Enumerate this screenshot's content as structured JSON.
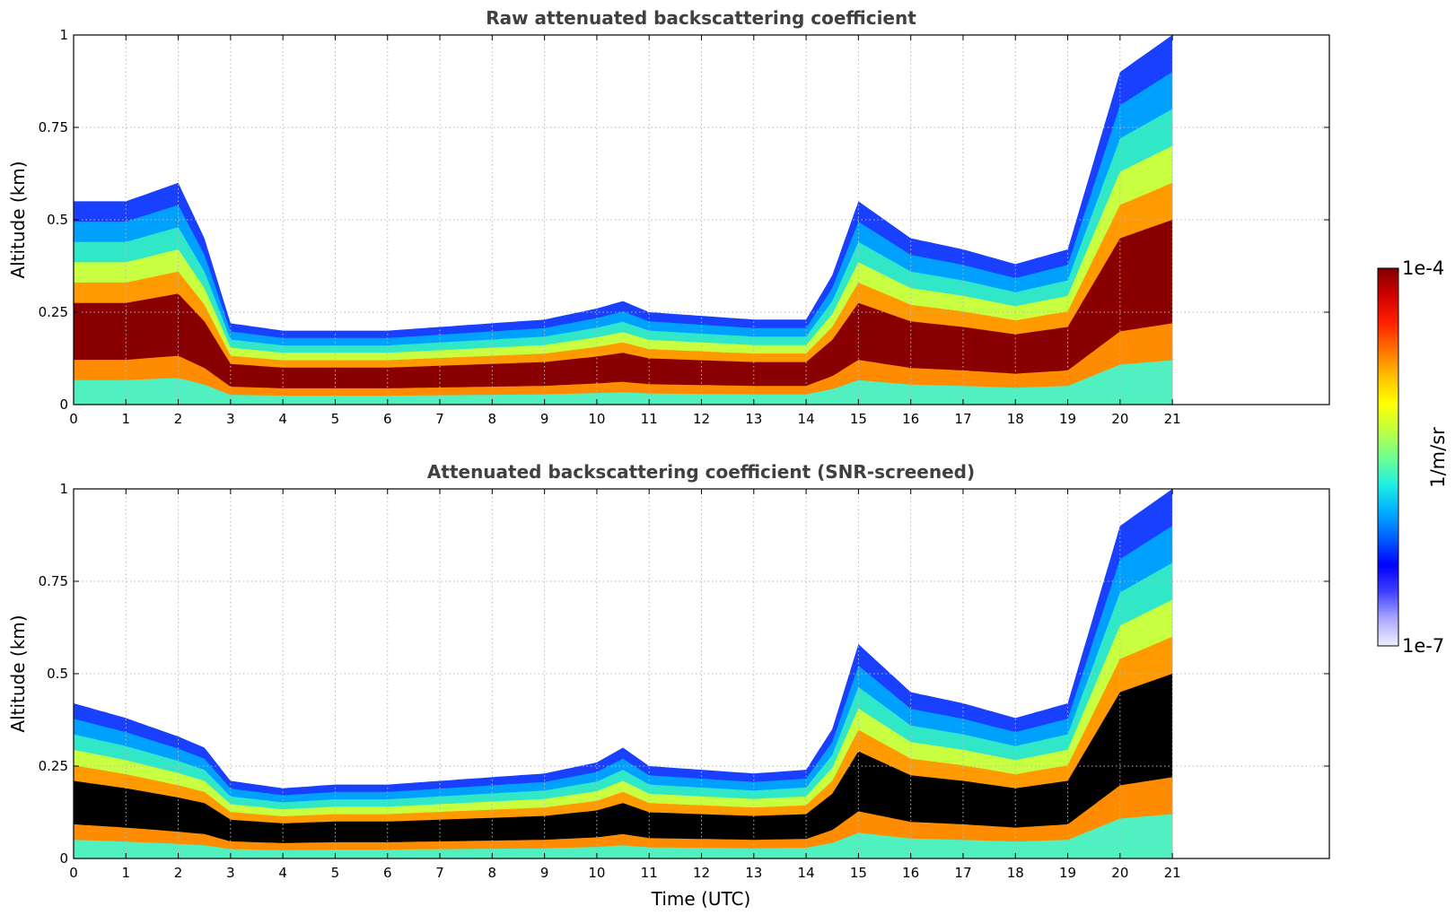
{
  "chart_data": [
    {
      "type": "heatmap",
      "title": "Raw attenuated backscattering coefficient",
      "xlabel": "",
      "ylabel": "Altitude (km)",
      "xlim": [
        0,
        24
      ],
      "ylim": [
        0,
        1
      ],
      "xticks": [
        "0",
        "1",
        "2",
        "3",
        "4",
        "5",
        "6",
        "7",
        "8",
        "9",
        "10",
        "11",
        "12",
        "13",
        "14",
        "15",
        "16",
        "17",
        "18",
        "19",
        "20",
        "21"
      ],
      "yticks": [
        "0",
        "0.25",
        "0.5",
        "0.75",
        "1"
      ],
      "grid": true,
      "data_extent_hours": [
        0,
        21
      ],
      "colormap": "jet (log scale)",
      "aerosol_layer_top_km": {
        "x": [
          0.0,
          1.0,
          2.0,
          2.5,
          3.0,
          4.0,
          5.0,
          6.0,
          7.0,
          8.0,
          9.0,
          10.0,
          10.5,
          11.0,
          12.0,
          13.0,
          14.0,
          14.5,
          15.0,
          16.0,
          17.0,
          18.0,
          19.0,
          20.0,
          21.0
        ],
        "y": [
          0.55,
          0.55,
          0.6,
          0.45,
          0.22,
          0.2,
          0.2,
          0.2,
          0.21,
          0.22,
          0.23,
          0.26,
          0.28,
          0.25,
          0.24,
          0.23,
          0.23,
          0.35,
          0.55,
          0.45,
          0.42,
          0.38,
          0.42,
          0.9,
          1.0
        ]
      }
    },
    {
      "type": "heatmap",
      "title": "Attenuated backscattering coefficient (SNR-screened)",
      "xlabel": "Time (UTC)",
      "ylabel": "Altitude (km)",
      "xlim": [
        0,
        24
      ],
      "ylim": [
        0,
        1
      ],
      "xticks": [
        "0",
        "1",
        "2",
        "3",
        "4",
        "5",
        "6",
        "7",
        "8",
        "9",
        "10",
        "11",
        "12",
        "13",
        "14",
        "15",
        "16",
        "17",
        "18",
        "19",
        "20",
        "21"
      ],
      "yticks": [
        "0",
        "0.25",
        "0.5",
        "0.75",
        "1"
      ],
      "grid": true,
      "data_extent_hours": [
        0,
        21
      ],
      "colormap": "jet (log scale), saturated values shown in black",
      "aerosol_layer_top_km": {
        "x": [
          0.0,
          1.0,
          2.0,
          2.5,
          3.0,
          4.0,
          5.0,
          6.0,
          7.0,
          8.0,
          9.0,
          10.0,
          10.5,
          11.0,
          12.0,
          13.0,
          14.0,
          14.5,
          15.0,
          16.0,
          17.0,
          18.0,
          19.0,
          20.0,
          21.0
        ],
        "y": [
          0.42,
          0.38,
          0.33,
          0.3,
          0.21,
          0.19,
          0.2,
          0.2,
          0.21,
          0.22,
          0.23,
          0.26,
          0.3,
          0.25,
          0.24,
          0.23,
          0.24,
          0.35,
          0.58,
          0.45,
          0.42,
          0.38,
          0.42,
          0.9,
          1.0
        ]
      }
    }
  ],
  "colorbar": {
    "label": "1/m/sr",
    "max_label": "1e-4",
    "min_label": "1e-7",
    "colors": [
      "#f0f0ff",
      "#aaaaff",
      "#4040ff",
      "#0000ff",
      "#0060ff",
      "#00b0ff",
      "#20f0e0",
      "#70ff90",
      "#c0ff40",
      "#ffff00",
      "#ffc000",
      "#ff7000",
      "#ff2000",
      "#d00000",
      "#800000"
    ]
  }
}
